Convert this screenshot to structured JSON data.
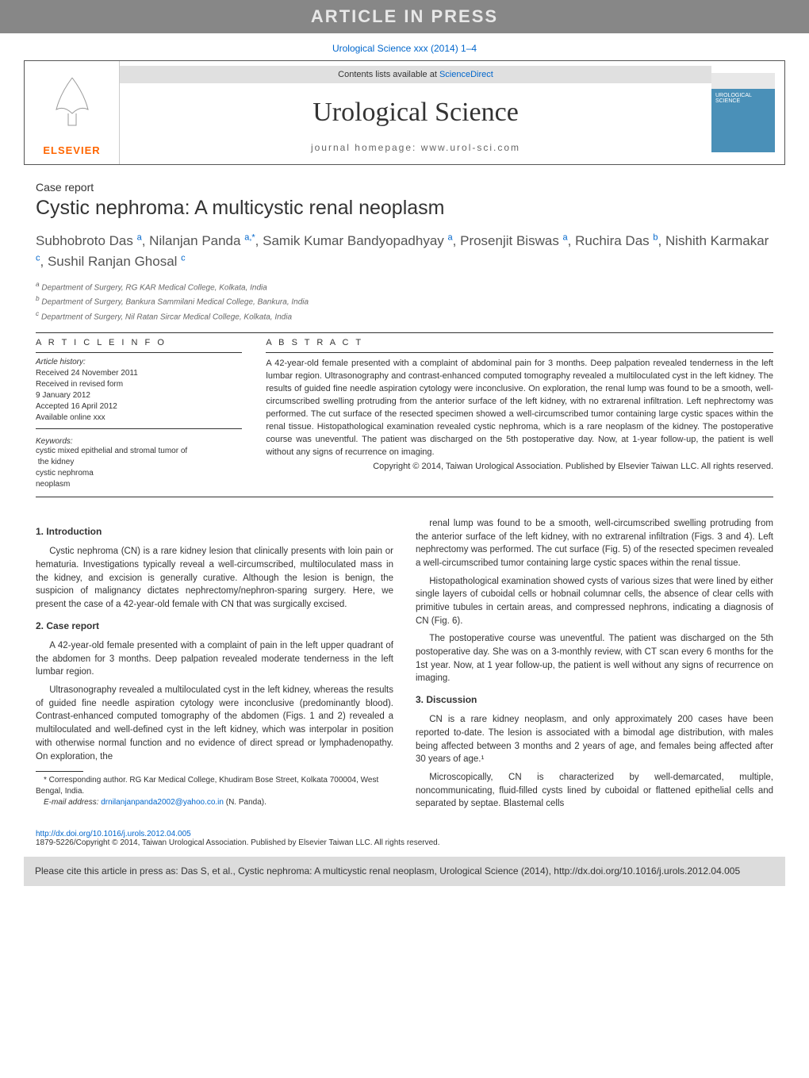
{
  "banner": "ARTICLE IN PRESS",
  "citation": "Urological Science xxx (2014) 1–4",
  "header": {
    "contents_prefix": "Contents lists available at ",
    "contents_link": "ScienceDirect",
    "journal": "Urological Science",
    "homepage": "journal homepage: www.urol-sci.com",
    "publisher": "ELSEVIER"
  },
  "article_type": "Case report",
  "title": "Cystic nephroma: A multicystic renal neoplasm",
  "authors_html": "Subhobroto Das <sup>a</sup>, Nilanjan Panda <sup>a,*</sup>, Samik Kumar Bandyopadhyay <sup>a</sup>, Prosenjit Biswas <sup>a</sup>, Ruchira Das <sup>b</sup>, Nishith Karmakar <sup>c</sup>, Sushil Ranjan Ghosal <sup>c</sup>",
  "affiliations": [
    "a Department of Surgery, RG KAR Medical College, Kolkata, India",
    "b Department of Surgery, Bankura Sammilani Medical College, Bankura, India",
    "c Department of Surgery, Nil Ratan Sircar Medical College, Kolkata, India"
  ],
  "info_heading": "A R T I C L E   I N F O",
  "abstract_heading": "A B S T R A C T",
  "history_title": "Article history:",
  "history": [
    "Received 24 November 2011",
    "Received in revised form",
    "9 January 2012",
    "Accepted 16 April 2012",
    "Available online xxx"
  ],
  "keywords_title": "Keywords:",
  "keywords": [
    "cystic mixed epithelial and stromal tumor of",
    "  the kidney",
    "cystic nephroma",
    "neoplasm"
  ],
  "abstract": "A 42-year-old female presented with a complaint of abdominal pain for 3 months. Deep palpation revealed tenderness in the left lumbar region. Ultrasonography and contrast-enhanced computed tomography revealed a multiloculated cyst in the left kidney. The results of guided fine needle aspiration cytology were inconclusive. On exploration, the renal lump was found to be a smooth, well-circumscribed swelling protruding from the anterior surface of the left kidney, with no extrarenal infiltration. Left nephrectomy was performed. The cut surface of the resected specimen showed a well-circumscribed tumor containing large cystic spaces within the renal tissue. Histopathological examination revealed cystic nephroma, which is a rare neoplasm of the kidney. The postoperative course was uneventful. The patient was discharged on the 5th postoperative day. Now, at 1-year follow-up, the patient is well without any signs of recurrence on imaging.",
  "abstract_copyright": "Copyright © 2014, Taiwan Urological Association. Published by Elsevier Taiwan LLC. All rights reserved.",
  "sections": {
    "s1_title": "1. Introduction",
    "s1_p1": "Cystic nephroma (CN) is a rare kidney lesion that clinically presents with loin pain or hematuria. Investigations typically reveal a well-circumscribed, multiloculated mass in the kidney, and excision is generally curative. Although the lesion is benign, the suspicion of malignancy dictates nephrectomy/nephron-sparing surgery. Here, we present the case of a 42-year-old female with CN that was surgically excised.",
    "s2_title": "2. Case report",
    "s2_p1": "A 42-year-old female presented with a complaint of pain in the left upper quadrant of the abdomen for 3 months. Deep palpation revealed moderate tenderness in the left lumbar region.",
    "s2_p2": "Ultrasonography revealed a multiloculated cyst in the left kidney, whereas the results of guided fine needle aspiration cytology were inconclusive (predominantly blood). Contrast-enhanced computed tomography of the abdomen (Figs. 1 and 2) revealed a multiloculated and well-defined cyst in the left kidney, which was interpolar in position with otherwise normal function and no evidence of direct spread or lymphadenopathy. On exploration, the",
    "s2_p3": "renal lump was found to be a smooth, well-circumscribed swelling protruding from the anterior surface of the left kidney, with no extrarenal infiltration (Figs. 3 and 4). Left nephrectomy was performed. The cut surface (Fig. 5) of the resected specimen revealed a well-circumscribed tumor containing large cystic spaces within the renal tissue.",
    "s2_p4": "Histopathological examination showed cysts of various sizes that were lined by either single layers of cuboidal cells or hobnail columnar cells, the absence of clear cells with primitive tubules in certain areas, and compressed nephrons, indicating a diagnosis of CN (Fig. 6).",
    "s2_p5": "The postoperative course was uneventful. The patient was discharged on the 5th postoperative day. She was on a 3-monthly review, with CT scan every 6 months for the 1st year. Now, at 1 year follow-up, the patient is well without any signs of recurrence on imaging.",
    "s3_title": "3. Discussion",
    "s3_p1": "CN is a rare kidney neoplasm, and only approximately 200 cases have been reported to-date. The lesion is associated with a bimodal age distribution, with males being affected between 3 months and 2 years of age, and females being affected after 30 years of age.¹",
    "s3_p2": "Microscopically, CN is characterized by well-demarcated, multiple, noncommunicating, fluid-filled cysts lined by cuboidal or flattened epithelial cells and separated by septae. Blastemal cells"
  },
  "footnote": {
    "corr": "* Corresponding author. RG Kar Medical College, Khudiram Bose Street, Kolkata 700004, West Bengal, India.",
    "email_label": "E-mail address: ",
    "email": "drnilanjanpanda2002@yahoo.co.in",
    "email_suffix": " (N. Panda)."
  },
  "doi": {
    "link": "http://dx.doi.org/10.1016/j.urols.2012.04.005",
    "copyright": "1879-5226/Copyright © 2014, Taiwan Urological Association. Published by Elsevier Taiwan LLC. All rights reserved."
  },
  "cite_box": "Please cite this article in press as: Das S, et al., Cystic nephroma: A multicystic renal neoplasm, Urological Science (2014), http://dx.doi.org/10.1016/j.urols.2012.04.005",
  "colors": {
    "banner_bg": "#878787",
    "link": "#0066cc",
    "elsevier_orange": "#ff6600",
    "citebox_bg": "#dcdcdc"
  }
}
